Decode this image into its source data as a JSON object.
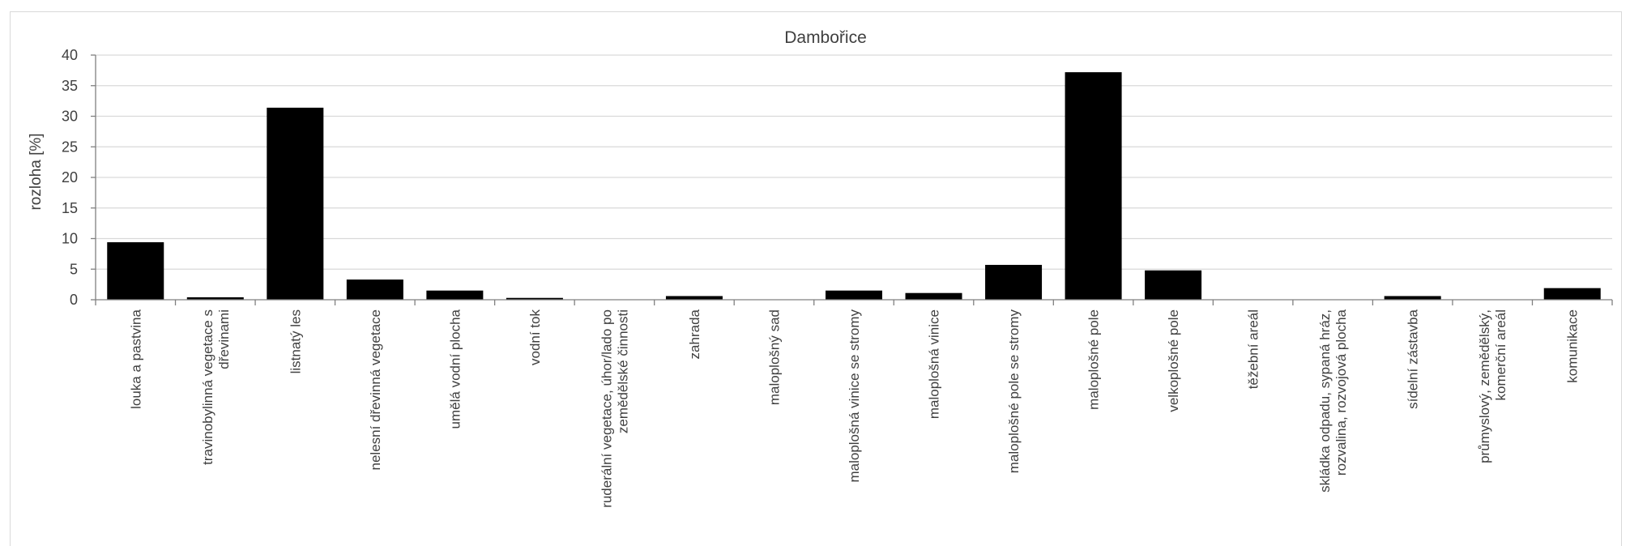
{
  "chart_data": {
    "type": "bar",
    "title": "Dambořice",
    "xlabel": "",
    "ylabel": "rozloha [%]",
    "ylim": [
      0,
      40
    ],
    "yticks": [
      0,
      5,
      10,
      15,
      20,
      25,
      30,
      35,
      40
    ],
    "grid": true,
    "legend": "none",
    "bar_color": "#000000",
    "categories": [
      [
        "louka a pastvina"
      ],
      [
        "travinobylinná vegetace s",
        "dřevinami"
      ],
      [
        "listnatý les"
      ],
      [
        "nelesní dřevinná vegetace"
      ],
      [
        "umělá vodní plocha"
      ],
      [
        "vodní tok"
      ],
      [
        "ruderální vegetace, úhor/lado po",
        "zemědělské činnosti"
      ],
      [
        "zahrada"
      ],
      [
        "maloplošný sad"
      ],
      [
        "maloplošná vinice se stromy"
      ],
      [
        "maloplošná vinice"
      ],
      [
        "maloplošné pole se stromy"
      ],
      [
        "maloplošné pole"
      ],
      [
        "velkoplošné pole"
      ],
      [
        "těžební areál"
      ],
      [
        "skládka odpadu, sypaná hráz,",
        "rozvalina, rozvojová plocha"
      ],
      [
        "sídelní zástavba"
      ],
      [
        "průmyslový, zemědělský,",
        "komerční areál"
      ],
      [
        "komunikace"
      ]
    ],
    "values": [
      9.4,
      0.4,
      31.4,
      3.3,
      1.5,
      0.3,
      0.0,
      0.6,
      0.0,
      1.5,
      1.1,
      5.7,
      37.2,
      4.8,
      0.0,
      0.0,
      0.6,
      0.0,
      1.9
    ]
  }
}
